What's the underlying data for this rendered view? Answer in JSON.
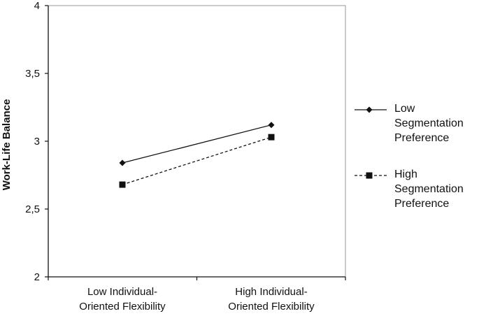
{
  "chart_data": {
    "type": "line",
    "title": "",
    "xlabel": "",
    "ylabel": "Work-Life Balance",
    "ylim": [
      2,
      4
    ],
    "y_ticks": [
      "2",
      "2,5",
      "3",
      "3,5",
      "4"
    ],
    "grid": false,
    "legend_position": "right",
    "categories": [
      [
        "Low Individual-",
        "Oriented Flexibility"
      ],
      [
        "High Individual-",
        "Oriented Flexibility"
      ]
    ],
    "series": [
      {
        "name": "Low Segmentation Preference",
        "legend_lines": [
          "Low",
          "Segmentation",
          "Preference"
        ],
        "values": [
          2.84,
          3.12
        ],
        "marker": "diamond",
        "line_style": "solid",
        "color": "#111111"
      },
      {
        "name": "High Segmentation Preference",
        "legend_lines": [
          "High",
          "Segmentation",
          "Preference"
        ],
        "values": [
          2.68,
          3.03
        ],
        "marker": "square",
        "line_style": "dashed",
        "color": "#111111"
      }
    ]
  }
}
